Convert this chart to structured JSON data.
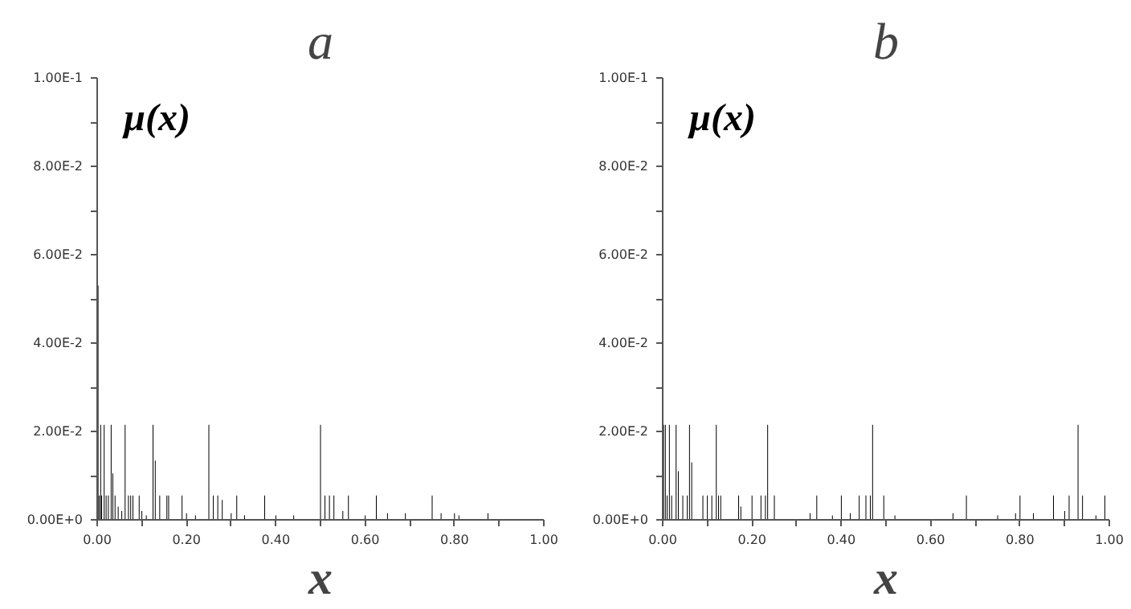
{
  "chart_data": [
    {
      "type": "bar",
      "title": "a",
      "xlabel": "x",
      "ylabel": "μ(x)",
      "color": "#000000",
      "x": [
        0.002,
        0.0048,
        0.0078,
        0.01,
        0.0156,
        0.02,
        0.025,
        0.03125,
        0.035,
        0.04,
        0.047,
        0.055,
        0.0625,
        0.07,
        0.075,
        0.08,
        0.094,
        0.1,
        0.11,
        0.125,
        0.13,
        0.14,
        0.156,
        0.16,
        0.19,
        0.2,
        0.22,
        0.25,
        0.26,
        0.27,
        0.28,
        0.3,
        0.3125,
        0.33,
        0.375,
        0.4,
        0.44,
        0.5,
        0.51,
        0.52,
        0.53,
        0.55,
        0.5625,
        0.6,
        0.625,
        0.65,
        0.69,
        0.75,
        0.77,
        0.8,
        0.81,
        0.875
      ],
      "values": [
        0.053,
        0.0055,
        0.0215,
        0.0055,
        0.0215,
        0.0055,
        0.0055,
        0.0215,
        0.0105,
        0.0055,
        0.003,
        0.002,
        0.0215,
        0.0055,
        0.0055,
        0.0055,
        0.0055,
        0.002,
        0.001,
        0.0215,
        0.0134,
        0.0055,
        0.0055,
        0.0055,
        0.0055,
        0.0015,
        0.001,
        0.0215,
        0.0055,
        0.0055,
        0.0045,
        0.0015,
        0.0055,
        0.001,
        0.0055,
        0.001,
        0.001,
        0.0215,
        0.0055,
        0.0055,
        0.0055,
        0.002,
        0.0055,
        0.001,
        0.0055,
        0.0015,
        0.0015,
        0.0055,
        0.0015,
        0.0015,
        0.001,
        0.0015
      ],
      "xlim": [
        0,
        1
      ],
      "ylim": [
        0,
        0.1
      ],
      "xticks": [
        {
          "value": 0,
          "label": "0.00"
        },
        {
          "value": 0.1,
          "label": null
        },
        {
          "value": 0.2,
          "label": "0.20"
        },
        {
          "value": 0.3,
          "label": null
        },
        {
          "value": 0.4,
          "label": "0.40"
        },
        {
          "value": 0.5,
          "label": null
        },
        {
          "value": 0.6,
          "label": "0.60"
        },
        {
          "value": 0.7,
          "label": null
        },
        {
          "value": 0.8,
          "label": "0.80"
        },
        {
          "value": 0.9,
          "label": null
        },
        {
          "value": 1,
          "label": "1.00"
        }
      ],
      "yticks": [
        {
          "value": 0,
          "label": "0.00E+0"
        },
        {
          "value": 0.01,
          "label": null
        },
        {
          "value": 0.02,
          "label": "2.00E-2"
        },
        {
          "value": 0.03,
          "label": null
        },
        {
          "value": 0.04,
          "label": "4.00E-2"
        },
        {
          "value": 0.05,
          "label": null
        },
        {
          "value": 0.06,
          "label": "6.00E-2"
        },
        {
          "value": 0.07,
          "label": null
        },
        {
          "value": 0.08,
          "label": "8.00E-2"
        },
        {
          "value": 0.09,
          "label": null
        },
        {
          "value": 0.1,
          "label": "1.00E-1"
        }
      ],
      "grid": false
    },
    {
      "type": "bar",
      "title": "b",
      "xlabel": "x",
      "ylabel": "μ(x)",
      "color": "#000000",
      "x": [
        0.002,
        0.006,
        0.01,
        0.015,
        0.02,
        0.03,
        0.035,
        0.045,
        0.055,
        0.06,
        0.065,
        0.09,
        0.1,
        0.11,
        0.12,
        0.125,
        0.13,
        0.17,
        0.175,
        0.2,
        0.22,
        0.23,
        0.235,
        0.25,
        0.33,
        0.345,
        0.38,
        0.4,
        0.42,
        0.44,
        0.455,
        0.465,
        0.47,
        0.495,
        0.52,
        0.65,
        0.68,
        0.75,
        0.79,
        0.8,
        0.83,
        0.875,
        0.9,
        0.91,
        0.93,
        0.94,
        0.97,
        0.99
      ],
      "values": [
        0.0215,
        0.0215,
        0.0055,
        0.0215,
        0.0055,
        0.0215,
        0.011,
        0.0055,
        0.0055,
        0.0215,
        0.013,
        0.0055,
        0.0055,
        0.0055,
        0.0215,
        0.0055,
        0.0055,
        0.0055,
        0.003,
        0.0055,
        0.0055,
        0.0055,
        0.0215,
        0.0055,
        0.0015,
        0.0055,
        0.001,
        0.0055,
        0.0015,
        0.0055,
        0.0055,
        0.0055,
        0.0215,
        0.0055,
        0.001,
        0.0015,
        0.0055,
        0.001,
        0.0015,
        0.0055,
        0.0015,
        0.0055,
        0.002,
        0.0055,
        0.0215,
        0.0055,
        0.001,
        0.0055
      ],
      "xlim": [
        0,
        1
      ],
      "ylim": [
        0,
        0.1
      ],
      "xticks": [
        {
          "value": 0,
          "label": "0.00"
        },
        {
          "value": 0.1,
          "label": null
        },
        {
          "value": 0.2,
          "label": "0.20"
        },
        {
          "value": 0.3,
          "label": null
        },
        {
          "value": 0.4,
          "label": "0.40"
        },
        {
          "value": 0.5,
          "label": null
        },
        {
          "value": 0.6,
          "label": "0.60"
        },
        {
          "value": 0.7,
          "label": null
        },
        {
          "value": 0.8,
          "label": "0.80"
        },
        {
          "value": 0.9,
          "label": null
        },
        {
          "value": 1,
          "label": "1.00"
        }
      ],
      "yticks": [
        {
          "value": 0,
          "label": "0.00E+0"
        },
        {
          "value": 0.01,
          "label": null
        },
        {
          "value": 0.02,
          "label": "2.00E-2"
        },
        {
          "value": 0.03,
          "label": null
        },
        {
          "value": 0.04,
          "label": "4.00E-2"
        },
        {
          "value": 0.05,
          "label": null
        },
        {
          "value": 0.06,
          "label": "6.00E-2"
        },
        {
          "value": 0.07,
          "label": null
        },
        {
          "value": 0.08,
          "label": "8.00E-2"
        },
        {
          "value": 0.09,
          "label": null
        },
        {
          "value": 0.1,
          "label": "1.00E-1"
        }
      ],
      "grid": false
    }
  ]
}
